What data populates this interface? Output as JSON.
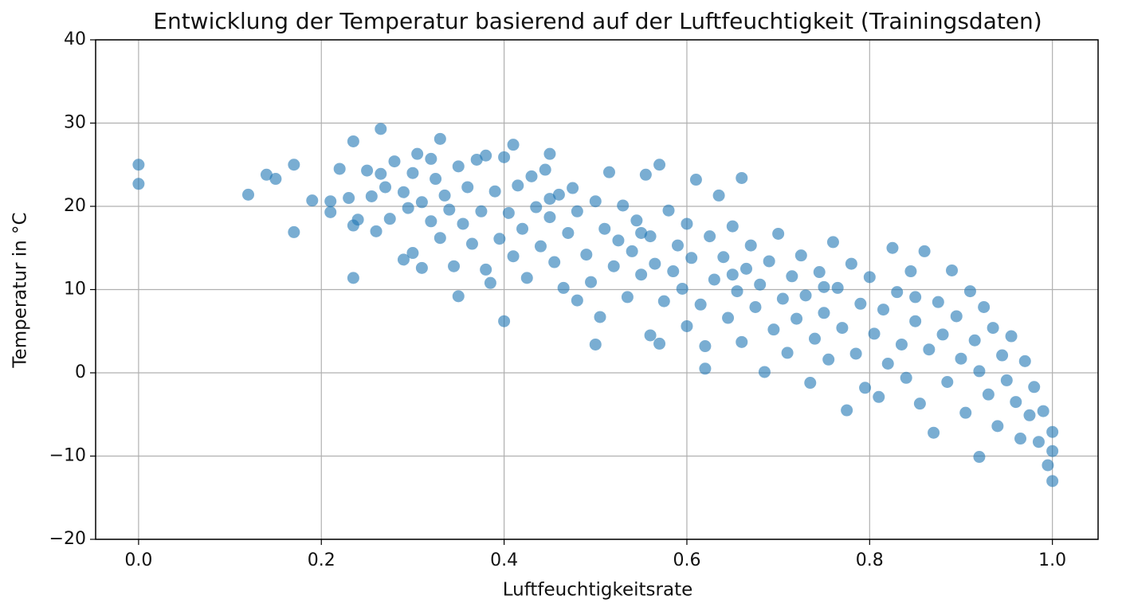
{
  "chart_data": {
    "type": "scatter",
    "title": "Entwicklung der Temperatur basierend auf der Luftfeuchtigkeit (Trainingsdaten)",
    "x_label": "Luftfeuchtigkeitsrate",
    "y_label": "Temperatur in °C",
    "color": "#1f77b4",
    "grid": true,
    "xlim": [
      -0.047,
      1.05
    ],
    "ylim": [
      -20,
      40
    ],
    "xticks": [
      {
        "value": 0,
        "label": "0.0"
      },
      0.2,
      0.4,
      0.6,
      0.8,
      {
        "value": 1,
        "label": "1.0"
      }
    ],
    "yticks": [
      {
        "value": -20,
        "label": "−20"
      },
      {
        "value": -10,
        "label": "−10"
      },
      0,
      10,
      20,
      30,
      40
    ],
    "x": [
      0,
      0,
      0.12,
      0.14,
      0.15,
      0.17,
      0.17,
      0.19,
      0.21,
      0.21,
      0.22,
      0.23,
      0.235,
      0.235,
      0.24,
      0.235,
      0.25,
      0.255,
      0.26,
      0.265,
      0.265,
      0.27,
      0.275,
      0.28,
      0.29,
      0.29,
      0.295,
      0.3,
      0.3,
      0.305,
      0.31,
      0.31,
      0.32,
      0.32,
      0.325,
      0.33,
      0.33,
      0.335,
      0.34,
      0.345,
      0.35,
      0.35,
      0.355,
      0.36,
      0.365,
      0.37,
      0.375,
      0.38,
      0.38,
      0.385,
      0.39,
      0.395,
      0.4,
      0.4,
      0.405,
      0.41,
      0.41,
      0.415,
      0.42,
      0.425,
      0.43,
      0.435,
      0.44,
      0.445,
      0.45,
      0.45,
      0.455,
      0.46,
      0.465,
      0.47,
      0.475,
      0.48,
      0.48,
      0.49,
      0.495,
      0.5,
      0.5,
      0.505,
      0.51,
      0.515,
      0.52,
      0.525,
      0.53,
      0.535,
      0.54,
      0.545,
      0.55,
      0.555,
      0.56,
      0.56,
      0.565,
      0.57,
      0.57,
      0.575,
      0.58,
      0.585,
      0.59,
      0.595,
      0.6,
      0.6,
      0.605,
      0.61,
      0.615,
      0.62,
      0.62,
      0.625,
      0.63,
      0.635,
      0.64,
      0.645,
      0.65,
      0.655,
      0.66,
      0.66,
      0.665,
      0.67,
      0.675,
      0.68,
      0.685,
      0.69,
      0.695,
      0.7,
      0.705,
      0.71,
      0.715,
      0.72,
      0.725,
      0.73,
      0.735,
      0.74,
      0.745,
      0.75,
      0.755,
      0.76,
      0.765,
      0.77,
      0.775,
      0.78,
      0.785,
      0.79,
      0.795,
      0.8,
      0.805,
      0.81,
      0.815,
      0.82,
      0.825,
      0.83,
      0.835,
      0.84,
      0.845,
      0.85,
      0.855,
      0.86,
      0.865,
      0.87,
      0.875,
      0.88,
      0.885,
      0.89,
      0.895,
      0.9,
      0.905,
      0.91,
      0.915,
      0.92,
      0.92,
      0.925,
      0.93,
      0.935,
      0.94,
      0.945,
      0.95,
      0.955,
      0.96,
      0.965,
      0.97,
      0.975,
      0.98,
      0.985,
      0.99,
      0.995,
      1,
      1,
      1,
      0.55,
      0.45,
      0.65,
      0.75,
      0.85
    ],
    "y": [
      25,
      22.7,
      21.4,
      23.8,
      23.3,
      25,
      16.9,
      20.7,
      19.3,
      20.6,
      24.5,
      21,
      27.8,
      11.4,
      18.4,
      17.7,
      24.3,
      21.2,
      17,
      29.3,
      23.9,
      22.3,
      18.5,
      25.4,
      21.7,
      13.6,
      19.8,
      24,
      14.4,
      26.3,
      20.5,
      12.6,
      25.7,
      18.2,
      23.3,
      28.1,
      16.2,
      21.3,
      19.6,
      12.8,
      9.2,
      24.8,
      17.9,
      22.3,
      15.5,
      25.6,
      19.4,
      26.1,
      12.4,
      10.8,
      21.8,
      16.1,
      25.9,
      6.2,
      19.2,
      27.4,
      14,
      22.5,
      17.3,
      11.4,
      23.6,
      19.9,
      15.2,
      24.4,
      26.3,
      18.7,
      13.3,
      21.4,
      10.2,
      16.8,
      22.2,
      8.7,
      19.4,
      14.2,
      10.9,
      20.6,
      3.4,
      6.7,
      17.3,
      24.1,
      12.8,
      15.9,
      20.1,
      9.1,
      14.6,
      18.3,
      11.8,
      23.8,
      16.4,
      4.5,
      13.1,
      25,
      3.5,
      8.6,
      19.5,
      12.2,
      15.3,
      10.1,
      17.9,
      5.6,
      13.8,
      23.2,
      8.2,
      0.5,
      3.2,
      16.4,
      11.2,
      21.3,
      13.9,
      6.6,
      17.6,
      9.8,
      23.4,
      3.7,
      12.5,
      15.3,
      7.9,
      10.6,
      0.1,
      13.4,
      5.2,
      16.7,
      8.9,
      2.4,
      11.6,
      6.5,
      14.1,
      9.3,
      -1.2,
      4.1,
      12.1,
      7.2,
      1.6,
      15.7,
      10.2,
      5.4,
      -4.5,
      13.1,
      2.3,
      8.3,
      -1.8,
      11.5,
      4.7,
      -2.9,
      7.6,
      1.1,
      15,
      9.7,
      3.4,
      -0.6,
      12.2,
      6.2,
      -3.7,
      14.6,
      2.8,
      -7.2,
      8.5,
      4.6,
      -1.1,
      12.3,
      6.8,
      1.7,
      -4.8,
      9.8,
      3.9,
      -10.1,
      0.2,
      7.9,
      -2.6,
      5.4,
      -6.4,
      2.1,
      -0.9,
      4.4,
      -3.5,
      -7.9,
      1.4,
      -5.1,
      -1.7,
      -8.3,
      -4.6,
      -11.1,
      -13,
      -9.4,
      -7.1,
      16.8,
      20.9,
      11.8,
      10.3,
      9.1
    ]
  }
}
